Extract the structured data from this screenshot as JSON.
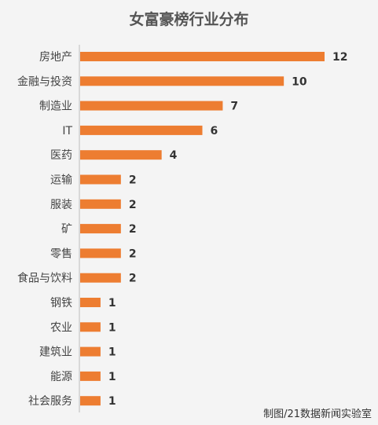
{
  "chart_data": {
    "type": "bar",
    "orientation": "horizontal",
    "title": "女富豪榜行业分布",
    "categories": [
      "房地产",
      "金融与投资",
      "制造业",
      "IT",
      "医药",
      "运输",
      "服装",
      "矿",
      "零售",
      "食品与饮料",
      "钢铁",
      "农业",
      "建筑业",
      "能源",
      "社会服务"
    ],
    "values": [
      12,
      10,
      7,
      6,
      4,
      2,
      2,
      2,
      2,
      2,
      1,
      1,
      1,
      1,
      1
    ],
    "xlim": [
      0,
      12
    ],
    "bar_color": "#ED7D31",
    "grid": false,
    "legend": false,
    "data_labels": true
  },
  "credit": "制图/21数据新闻实验室"
}
